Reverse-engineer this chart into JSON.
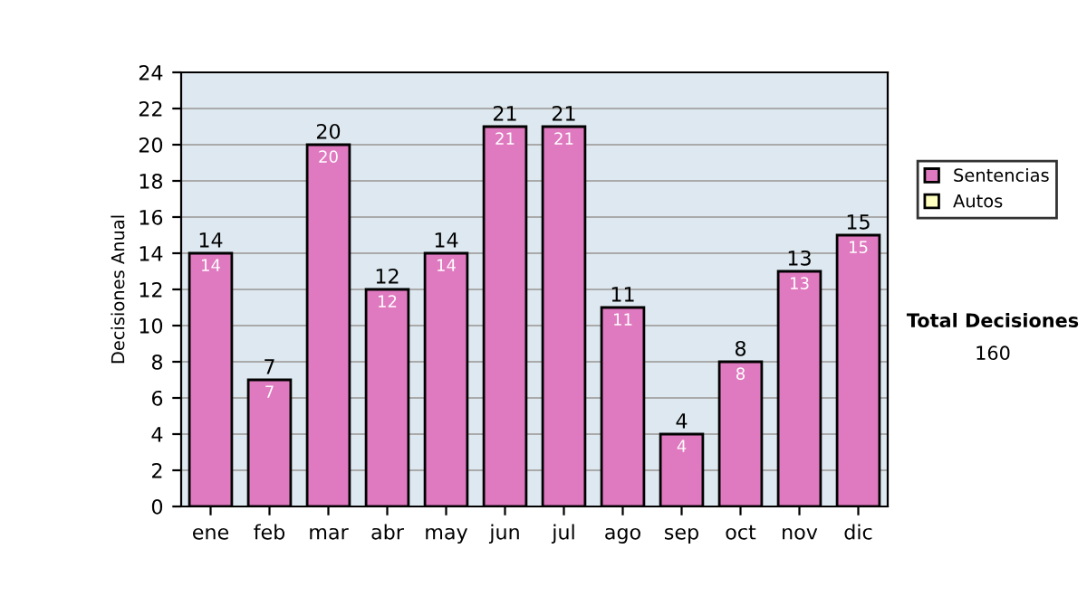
{
  "chart_data": {
    "type": "bar",
    "ylabel": "Decisiones Anual",
    "categories": [
      "ene",
      "feb",
      "mar",
      "abr",
      "may",
      "jun",
      "jul",
      "ago",
      "sep",
      "oct",
      "nov",
      "dic"
    ],
    "series": [
      {
        "name": "Sentencias",
        "color": "#e07ac0",
        "values": [
          14,
          7,
          20,
          12,
          14,
          21,
          21,
          11,
          4,
          8,
          13,
          15
        ],
        "value_labels": [
          "14",
          "7",
          "20",
          "12",
          "14",
          "21",
          "21",
          "11",
          "4",
          "8",
          "13",
          "15"
        ]
      },
      {
        "name": "Autos",
        "color": "#ffffc0",
        "values": [
          null,
          null,
          null,
          null,
          null,
          null,
          null,
          null,
          null,
          null,
          null,
          null
        ]
      }
    ],
    "stacked": true,
    "totals": [
      "14",
      "7",
      "20",
      "12",
      "14",
      "21",
      "21",
      "11",
      "4",
      "8",
      "13",
      "15"
    ],
    "ylim": [
      0,
      24
    ],
    "yticks": [
      0,
      2,
      4,
      6,
      8,
      10,
      12,
      14,
      16,
      18,
      20,
      22,
      24
    ],
    "grid": "y",
    "legend": "right",
    "annotations": [
      "Total Decisiones",
      "160"
    ]
  }
}
